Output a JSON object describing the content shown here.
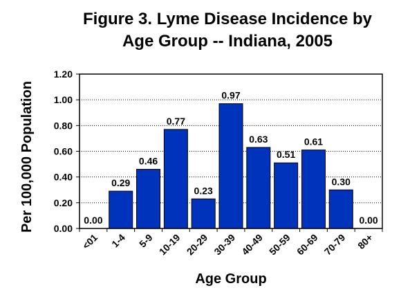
{
  "chart_data": {
    "type": "bar",
    "title": "Figure 3. Lyme Disease Incidence by\nAge Group -- Indiana, 2005",
    "xlabel": "Age Group",
    "ylabel": "Per 100,000 Population",
    "categories": [
      "<01",
      "1-4",
      "5-9",
      "10-19",
      "20-29",
      "30-39",
      "40-49",
      "50-59",
      "60-69",
      "70-79",
      "80+"
    ],
    "values": [
      0.0,
      0.29,
      0.46,
      0.77,
      0.23,
      0.97,
      0.63,
      0.51,
      0.61,
      0.3,
      0.0
    ],
    "value_labels": [
      "0.00",
      "0.29",
      "0.46",
      "0.77",
      "0.23",
      "0.97",
      "0.63",
      "0.51",
      "0.61",
      "0.30",
      "0.00"
    ],
    "ylim": [
      0,
      1.2
    ],
    "yticks": [
      0,
      0.2,
      0.4,
      0.6,
      0.8,
      1.0,
      1.2
    ],
    "ytick_labels": [
      "0.00",
      "0.20",
      "0.40",
      "0.60",
      "0.80",
      "1.00",
      "1.20"
    ],
    "grid": true,
    "colors": {
      "bar": "#0033bb",
      "bar_edge": "#000000",
      "grid": "#000000"
    }
  }
}
